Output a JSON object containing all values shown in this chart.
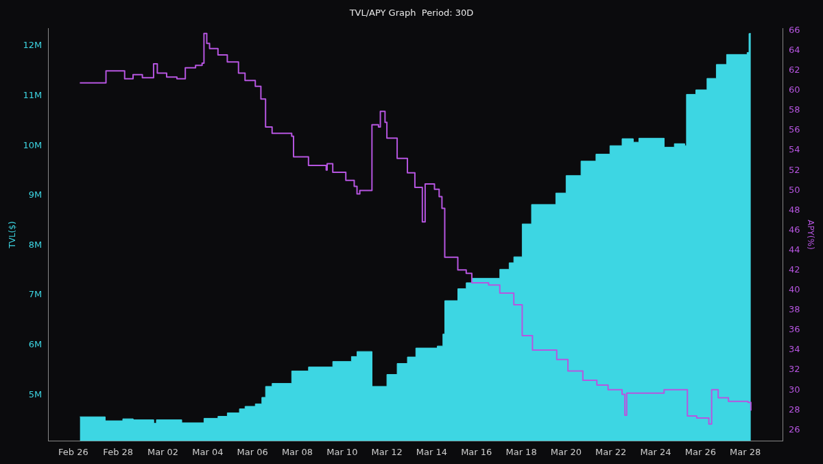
{
  "chart_data": {
    "type": "area",
    "title": "TVL/APY Graph  Period: 30D",
    "ylabel": "TVL($)",
    "y2label": "APY(%)",
    "xlim": [
      "--02-24T21:00",
      "--03-29T16:00"
    ],
    "xticks": [
      {
        "value": "--02-26",
        "label": "Feb 26"
      },
      {
        "value": "--02-28",
        "label": "Feb 28"
      },
      {
        "value": "--03-02",
        "label": "Mar 02"
      },
      {
        "value": "--03-04",
        "label": "Mar 04"
      },
      {
        "value": "--03-06",
        "label": "Mar 06"
      },
      {
        "value": "--03-08",
        "label": "Mar 08"
      },
      {
        "value": "--03-10",
        "label": "Mar 10"
      },
      {
        "value": "--03-12",
        "label": "Mar 12"
      },
      {
        "value": "--03-14",
        "label": "Mar 14"
      },
      {
        "value": "--03-16",
        "label": "Mar 16"
      },
      {
        "value": "--03-18",
        "label": "Mar 18"
      },
      {
        "value": "--03-20",
        "label": "Mar 20"
      },
      {
        "value": "--03-22",
        "label": "Mar 22"
      },
      {
        "value": "--03-24",
        "label": "Mar 24"
      },
      {
        "value": "--03-26",
        "label": "Mar 26"
      },
      {
        "value": "--03-28",
        "label": "Mar 28"
      }
    ],
    "ylim": [
      4076000,
      12350000
    ],
    "yticks": [
      {
        "value": 5000000,
        "label": "5M"
      },
      {
        "value": 6000000,
        "label": "6M"
      },
      {
        "value": 7000000,
        "label": "7M"
      },
      {
        "value": 8000000,
        "label": "8M"
      },
      {
        "value": 9000000,
        "label": "9M"
      },
      {
        "value": 10000000,
        "label": "10M"
      },
      {
        "value": 11000000,
        "label": "11M"
      },
      {
        "value": 12000000,
        "label": "12M"
      }
    ],
    "y2lim": [
      24.9,
      66.2
    ],
    "y2ticks": [
      26,
      28,
      30,
      32,
      34,
      36,
      38,
      40,
      42,
      44,
      46,
      48,
      50,
      52,
      54,
      56,
      58,
      60,
      62,
      64,
      66
    ],
    "grid": false,
    "legend": false,
    "marker": "none",
    "line_style": "solid",
    "series": [
      {
        "type": "area",
        "color": "#3dd6e3",
        "x": [
          "--02-26T07:00",
          "--02-27T10:00",
          "--02-27T10:00",
          "--02-28T05:00",
          "--02-28T05:00",
          "--02-28T16:00",
          "--02-28T16:00",
          "--03-01T14:00",
          "--03-01T14:00",
          "--03-01T17:00",
          "--03-01T17:00",
          "--03-02T20:00",
          "--03-02T20:00",
          "--03-03T20:00",
          "--03-03T20:00",
          "--03-04T11:00",
          "--03-04T11:00",
          "--03-04T21:00",
          "--03-04T21:00",
          "--03-05T10:00",
          "--03-05T10:00",
          "--03-05T16:00",
          "--03-05T16:00",
          "--03-06T03:00",
          "--03-06T03:00",
          "--03-06T10:00",
          "--03-06T10:00",
          "--03-06T14:00",
          "--03-06T14:00",
          "--03-06T21:00",
          "--03-06T21:00",
          "--03-07T18:00",
          "--03-07T18:00",
          "--03-08T12:00",
          "--03-08T12:00",
          "--03-09T14:00",
          "--03-09T14:00",
          "--03-10T10:00",
          "--03-10T10:00",
          "--03-10T16:00",
          "--03-10T16:00",
          "--03-11T08:00",
          "--03-11T08:00",
          "--03-12T00:00",
          "--03-12T00:00",
          "--03-12T11:00",
          "--03-12T11:00",
          "--03-12T22:00",
          "--03-12T22:00",
          "--03-13T07:00",
          "--03-13T07:00",
          "--03-14T06:00",
          "--03-14T06:00",
          "--03-14T12:00",
          "--03-14T12:00",
          "--03-14T14:00",
          "--03-14T14:00",
          "--03-15T04:00",
          "--03-15T04:00",
          "--03-15T13:00",
          "--03-15T13:00",
          "--03-15T19:00",
          "--03-15T19:00",
          "--03-17T01:00",
          "--03-17T01:00",
          "--03-17T11:00",
          "--03-17T11:00",
          "--03-17T16:00",
          "--03-17T16:00",
          "--03-18T01:00",
          "--03-18T01:00",
          "--03-18T11:00",
          "--03-18T11:00",
          "--03-19T13:00",
          "--03-19T13:00",
          "--03-20T00:00",
          "--03-20T00:00",
          "--03-20T16:00",
          "--03-20T16:00",
          "--03-21T08:00",
          "--03-21T08:00",
          "--03-21T23:00",
          "--03-21T23:00",
          "--03-22T12:00",
          "--03-22T12:00",
          "--03-23T00:00",
          "--03-23T00:00",
          "--03-23T06:00",
          "--03-23T06:00",
          "--03-24T09:00",
          "--03-24T09:00",
          "--03-24T20:00",
          "--03-24T20:00",
          "--03-25T07:00",
          "--03-25T07:00",
          "--03-25T09:00",
          "--03-25T09:00",
          "--03-25T19:00",
          "--03-25T19:00",
          "--03-26T07:00",
          "--03-26T07:00",
          "--03-26T17:00",
          "--03-26T17:00",
          "--03-27T04:00",
          "--03-27T04:00",
          "--03-28T02:00",
          "--03-28T02:00",
          "--03-28T04:00",
          "--03-28T04:00",
          "--03-28T06:00"
        ],
        "values": [
          4560000,
          4560000,
          4480000,
          4480000,
          4520000,
          4520000,
          4500000,
          4500000,
          4430000,
          4430000,
          4500000,
          4500000,
          4440000,
          4440000,
          4530000,
          4530000,
          4570000,
          4570000,
          4640000,
          4640000,
          4720000,
          4720000,
          4770000,
          4770000,
          4820000,
          4820000,
          4950000,
          4950000,
          5170000,
          5170000,
          5230000,
          5230000,
          5480000,
          5480000,
          5560000,
          5560000,
          5670000,
          5670000,
          5770000,
          5770000,
          5870000,
          5870000,
          5170000,
          5170000,
          5410000,
          5410000,
          5630000,
          5630000,
          5760000,
          5760000,
          5940000,
          5940000,
          5980000,
          5980000,
          6220000,
          6220000,
          6890000,
          6890000,
          7130000,
          7130000,
          7250000,
          7250000,
          7340000,
          7340000,
          7520000,
          7520000,
          7650000,
          7650000,
          7770000,
          7770000,
          8430000,
          8430000,
          8820000,
          8820000,
          9050000,
          9050000,
          9400000,
          9400000,
          9690000,
          9690000,
          9830000,
          9830000,
          10000000,
          10000000,
          10140000,
          10140000,
          10070000,
          10070000,
          10150000,
          10150000,
          9970000,
          9970000,
          10040000,
          10040000,
          10000000,
          10000000,
          11030000,
          11030000,
          11120000,
          11120000,
          11350000,
          11350000,
          11630000,
          11630000,
          11830000,
          11830000,
          11870000,
          11870000,
          12250000,
          12250000
        ]
      },
      {
        "type": "step",
        "axis": "y2",
        "color": "#b655e0",
        "x": [
          "--02-26T07:00",
          "--02-27T11:00",
          "--02-28T07:00",
          "--02-28T16:00",
          "--03-01T02:00",
          "--03-01T14:00",
          "--03-01T18:00",
          "--03-02T04:00",
          "--03-02T15:00",
          "--03-03T00:00",
          "--03-03T11:00",
          "--03-03T18:00",
          "--03-03T20:00",
          "--03-03T23:00",
          "--03-04T02:00",
          "--03-04T11:00",
          "--03-04T21:00",
          "--03-05T09:00",
          "--03-05T16:00",
          "--03-06T03:00",
          "--03-06T09:00",
          "--03-06T14:00",
          "--03-06T21:00",
          "--03-07T18:00",
          "--03-07T20:00",
          "--03-08T12:00",
          "--03-09T07:00",
          "--03-09T08:00",
          "--03-09T14:00",
          "--03-10T04:00",
          "--03-10T13:00",
          "--03-10T16:00",
          "--03-10T19:00",
          "--03-11T08:00",
          "--03-11T15:00",
          "--03-11T17:00",
          "--03-11T22:00",
          "--03-12T00:00",
          "--03-12T11:00",
          "--03-12T22:00",
          "--03-13T06:00",
          "--03-13T14:00",
          "--03-13T17:00",
          "--03-14T03:00",
          "--03-14T08:00",
          "--03-14T11:00",
          "--03-14T14:00",
          "--03-15T04:00",
          "--03-15T13:00",
          "--03-15T19:00",
          "--03-16T13:00",
          "--03-17T01:00",
          "--03-17T16:00",
          "--03-18T01:00",
          "--03-18T12:00",
          "--03-19T14:00",
          "--03-20T02:00",
          "--03-20T18:00",
          "--03-21T09:00",
          "--03-21T21:00",
          "--03-22T12:00",
          "--03-22T15:00",
          "--03-22T17:00",
          "--03-24T09:00",
          "--03-25T10:00",
          "--03-25T20:00",
          "--03-26T09:00",
          "--03-26T12:00",
          "--03-26T19:00",
          "--03-27T06:00",
          "--03-28T03:00",
          "--03-28T06:00"
        ],
        "values": [
          60.76,
          61.97,
          61.18,
          61.58,
          61.27,
          62.67,
          61.74,
          61.34,
          61.18,
          62.28,
          62.51,
          62.74,
          65.7,
          64.72,
          64.2,
          63.56,
          62.86,
          61.74,
          61.0,
          60.41,
          59.14,
          56.34,
          55.71,
          55.41,
          53.36,
          52.5,
          52.03,
          52.66,
          51.8,
          50.99,
          50.4,
          49.64,
          49.99,
          56.57,
          56.34,
          57.9,
          56.8,
          55.22,
          53.2,
          51.75,
          50.29,
          46.84,
          50.64,
          50.1,
          49.36,
          48.19,
          43.3,
          42.03,
          41.68,
          40.74,
          40.51,
          39.7,
          38.53,
          35.44,
          34.0,
          33.06,
          31.9,
          30.97,
          30.5,
          30.04,
          29.57,
          27.47,
          29.69,
          30.04,
          27.4,
          27.2,
          26.59,
          30.04,
          29.22,
          28.87,
          28.76,
          27.94
        ]
      }
    ]
  }
}
